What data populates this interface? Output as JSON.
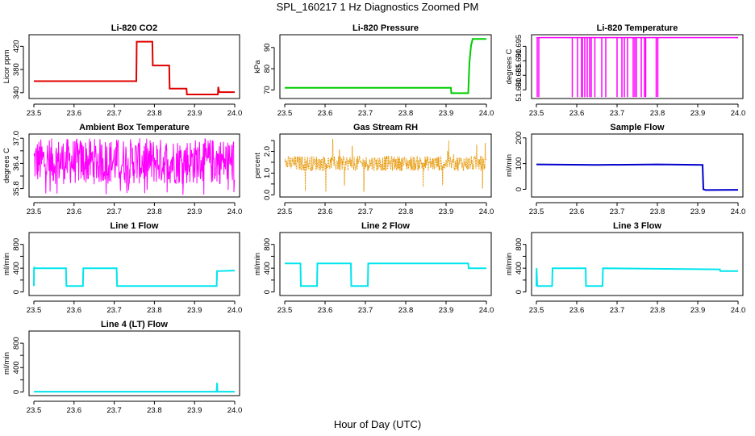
{
  "title": "SPL_160217  1 Hz Diagnostics Zoomed PM",
  "xlabel": "Hour of Day (UTC)",
  "chart_data": [
    {
      "id": "co2",
      "type": "line",
      "title": "Li-820 CO2",
      "ylabel": "Licor ppm",
      "color": "#e00000",
      "xlim": [
        23.5,
        24.0
      ],
      "ylim": [
        330,
        440
      ],
      "xticks": [
        23.5,
        23.6,
        23.7,
        23.8,
        23.9,
        24.0
      ],
      "xtick_labels": [
        "23.5",
        "23.6",
        "23.7",
        "23.8",
        "23.9",
        "24.0"
      ],
      "yticks": [
        340,
        380,
        420
      ],
      "ytick_labels": [
        "340",
        "380",
        "420"
      ],
      "series": [
        {
          "name": "Li-820 CO2",
          "x": [
            23.5,
            23.755,
            23.756,
            23.795,
            23.796,
            23.837,
            23.838,
            23.88,
            23.881,
            23.958,
            23.959,
            23.961,
            23.962,
            24.0
          ],
          "y": [
            360,
            360,
            428,
            428,
            387,
            387,
            347,
            347,
            337,
            337,
            350,
            342,
            341,
            341
          ]
        }
      ]
    },
    {
      "id": "pressure",
      "type": "line",
      "title": "Li-820 Pressure",
      "ylabel": "kPa",
      "color": "#00cc00",
      "xlim": [
        23.5,
        24.0
      ],
      "ylim": [
        66,
        96
      ],
      "xticks": [
        23.5,
        23.6,
        23.7,
        23.8,
        23.9,
        24.0
      ],
      "xtick_labels": [
        "23.5",
        "23.6",
        "23.7",
        "23.8",
        "23.9",
        "24.0"
      ],
      "yticks": [
        70,
        80,
        90
      ],
      "ytick_labels": [
        "70",
        "80",
        "90"
      ],
      "series": [
        {
          "name": "Li-820 Pressure",
          "x": [
            23.5,
            23.912,
            23.913,
            23.955,
            23.958,
            23.962,
            23.966,
            24.0
          ],
          "y": [
            71,
            71,
            68.5,
            68.5,
            83,
            91,
            94,
            94
          ]
        }
      ]
    },
    {
      "id": "licor_temp",
      "type": "line",
      "title": "Li-820 Temperature",
      "ylabel": "degrees C",
      "color": "#ff00ff",
      "xlim": [
        23.5,
        24.0
      ],
      "ylim": [
        51.677,
        51.699
      ],
      "xticks": [
        23.5,
        23.6,
        23.7,
        23.8,
        23.9,
        24.0
      ],
      "xtick_labels": [
        "23.5",
        "23.6",
        "23.7",
        "23.8",
        "23.9",
        "24.0"
      ],
      "yticks": [
        51.68,
        51.685,
        51.69,
        51.695
      ],
      "ytick_labels": [
        "51.680",
        "51.685",
        "51.690",
        "51.695"
      ],
      "baseline": 51.698,
      "low": 51.6775,
      "drops": [
        23.502,
        23.506,
        23.589,
        23.602,
        23.612,
        23.614,
        23.62,
        23.626,
        23.632,
        23.636,
        23.645,
        23.662,
        23.672,
        23.7,
        23.712,
        23.718,
        23.726,
        23.74,
        23.744,
        23.748,
        23.76,
        23.768,
        23.771,
        23.797,
        23.801
      ]
    },
    {
      "id": "ambient_temp",
      "type": "noise",
      "title": "Ambient Box Temperature",
      "ylabel": "degrees C",
      "color": "#ff00ff",
      "xlim": [
        23.5,
        24.0
      ],
      "ylim": [
        35.6,
        37.1
      ],
      "xticks": [
        23.5,
        23.6,
        23.7,
        23.8,
        23.9,
        24.0
      ],
      "xtick_labels": [
        "23.5",
        "23.6",
        "23.7",
        "23.8",
        "23.9",
        "24.0"
      ],
      "yticks": [
        35.8,
        36.4,
        37.0
      ],
      "ytick_labels": [
        "35.8",
        "36.4",
        "37.0"
      ],
      "yticks_minor": [
        36.1,
        36.7
      ],
      "levels": [
        35.9,
        37.0
      ],
      "spikes_down": 35.65
    },
    {
      "id": "rh",
      "type": "noise",
      "title": "Gas Stream RH",
      "ylabel": "percent",
      "color": "#e69500",
      "xlim": [
        23.5,
        24.0
      ],
      "ylim": [
        -0.1,
        2.8
      ],
      "xticks": [
        23.5,
        23.6,
        23.7,
        23.8,
        23.9,
        24.0
      ],
      "xtick_labels": [
        "23.5",
        "23.6",
        "23.7",
        "23.8",
        "23.9",
        "24.0"
      ],
      "yticks": [
        0.0,
        1.0,
        2.0
      ],
      "ytick_labels": [
        "0.0",
        "1.0",
        "2.0"
      ],
      "yticks_minor": [
        0.5,
        1.5,
        2.5
      ],
      "levels": [
        1.1,
        1.8
      ],
      "spikes_up": 2.6,
      "spikes_down": 0.05
    },
    {
      "id": "sample_flow",
      "type": "line",
      "title": "Sample Flow",
      "ylabel": "ml/min",
      "color": "#0000cc",
      "xlim": [
        23.5,
        24.0
      ],
      "ylim": [
        -30,
        215
      ],
      "xticks": [
        23.5,
        23.6,
        23.7,
        23.8,
        23.9,
        24.0
      ],
      "xtick_labels": [
        "23.5",
        "23.6",
        "23.7",
        "23.8",
        "23.9",
        "24.0"
      ],
      "yticks": [
        0,
        100,
        200
      ],
      "ytick_labels": [
        "0",
        "100",
        "200"
      ],
      "series": [
        {
          "name": "Sample Flow",
          "x": [
            23.5,
            23.65,
            23.75,
            23.8,
            23.85,
            23.912,
            23.914,
            23.92,
            24.0
          ],
          "y": [
            97,
            95,
            96,
            97,
            96,
            95,
            0,
            -3,
            -2
          ]
        }
      ]
    },
    {
      "id": "line1",
      "type": "line",
      "title": "Line 1 Flow",
      "ylabel": "ml/min",
      "color": "#00e5ee",
      "xlim": [
        23.5,
        24.0
      ],
      "ylim": [
        -60,
        1000
      ],
      "xticks": [
        23.5,
        23.6,
        23.7,
        23.8,
        23.9,
        24.0
      ],
      "xtick_labels": [
        "23.5",
        "23.6",
        "23.7",
        "23.8",
        "23.9",
        "24.0"
      ],
      "yticks": [
        0,
        400,
        800
      ],
      "ytick_labels": [
        "0",
        "400",
        "800"
      ],
      "yticks_minor": [
        200,
        600
      ],
      "series": [
        {
          "name": "Line 1 Flow",
          "x": [
            23.5,
            23.5005,
            23.502,
            23.58,
            23.581,
            23.622,
            23.623,
            23.706,
            23.707,
            23.955,
            23.956,
            24.0
          ],
          "y": [
            100,
            420,
            400,
            400,
            100,
            100,
            400,
            400,
            100,
            100,
            350,
            360
          ]
        }
      ]
    },
    {
      "id": "line2",
      "type": "line",
      "title": "Line 2 Flow",
      "ylabel": "ml/min",
      "color": "#00e5ee",
      "xlim": [
        23.5,
        24.0
      ],
      "ylim": [
        -60,
        1000
      ],
      "xticks": [
        23.5,
        23.6,
        23.7,
        23.8,
        23.9,
        24.0
      ],
      "xtick_labels": [
        "23.5",
        "23.6",
        "23.7",
        "23.8",
        "23.9",
        "24.0"
      ],
      "yticks": [
        0,
        400,
        800
      ],
      "ytick_labels": [
        "0",
        "400",
        "800"
      ],
      "yticks_minor": [
        200,
        600
      ],
      "series": [
        {
          "name": "Line 2 Flow",
          "x": [
            23.5,
            23.539,
            23.54,
            23.58,
            23.581,
            23.664,
            23.665,
            23.706,
            23.707,
            23.955,
            23.956,
            24.0
          ],
          "y": [
            480,
            480,
            100,
            100,
            480,
            480,
            100,
            100,
            480,
            480,
            400,
            400
          ]
        }
      ]
    },
    {
      "id": "line3",
      "type": "line",
      "title": "Line 3 Flow",
      "ylabel": "ml/min",
      "color": "#00e5ee",
      "xlim": [
        23.5,
        24.0
      ],
      "ylim": [
        -60,
        1000
      ],
      "xticks": [
        23.5,
        23.6,
        23.7,
        23.8,
        23.9,
        24.0
      ],
      "xtick_labels": [
        "23.5",
        "23.6",
        "23.7",
        "23.8",
        "23.9",
        "24.0"
      ],
      "yticks": [
        0,
        400,
        800
      ],
      "ytick_labels": [
        "0",
        "400",
        "800"
      ],
      "yticks_minor": [
        200,
        600
      ],
      "series": [
        {
          "name": "Line 3 Flow",
          "x": [
            23.5,
            23.5005,
            23.502,
            23.539,
            23.54,
            23.622,
            23.623,
            23.664,
            23.665,
            23.955,
            23.956,
            24.0
          ],
          "y": [
            100,
            400,
            100,
            100,
            400,
            400,
            100,
            100,
            400,
            380,
            350,
            350
          ]
        }
      ]
    },
    {
      "id": "line4",
      "type": "line",
      "title": "Line 4 (LT) Flow",
      "ylabel": "ml/min",
      "color": "#00e5ee",
      "xlim": [
        23.5,
        24.0
      ],
      "ylim": [
        -60,
        1000
      ],
      "xticks": [
        23.5,
        23.6,
        23.7,
        23.8,
        23.9,
        24.0
      ],
      "xtick_labels": [
        "23.5",
        "23.6",
        "23.7",
        "23.8",
        "23.9",
        "24.0"
      ],
      "yticks": [
        0,
        400,
        800
      ],
      "ytick_labels": [
        "0",
        "400",
        "800"
      ],
      "yticks_minor": [
        200,
        600
      ],
      "series": [
        {
          "name": "Line 4 (LT) Flow",
          "x": [
            23.5,
            23.955,
            23.956,
            23.957,
            23.958,
            24.0
          ],
          "y": [
            5,
            5,
            150,
            5,
            5,
            5
          ]
        }
      ]
    }
  ]
}
